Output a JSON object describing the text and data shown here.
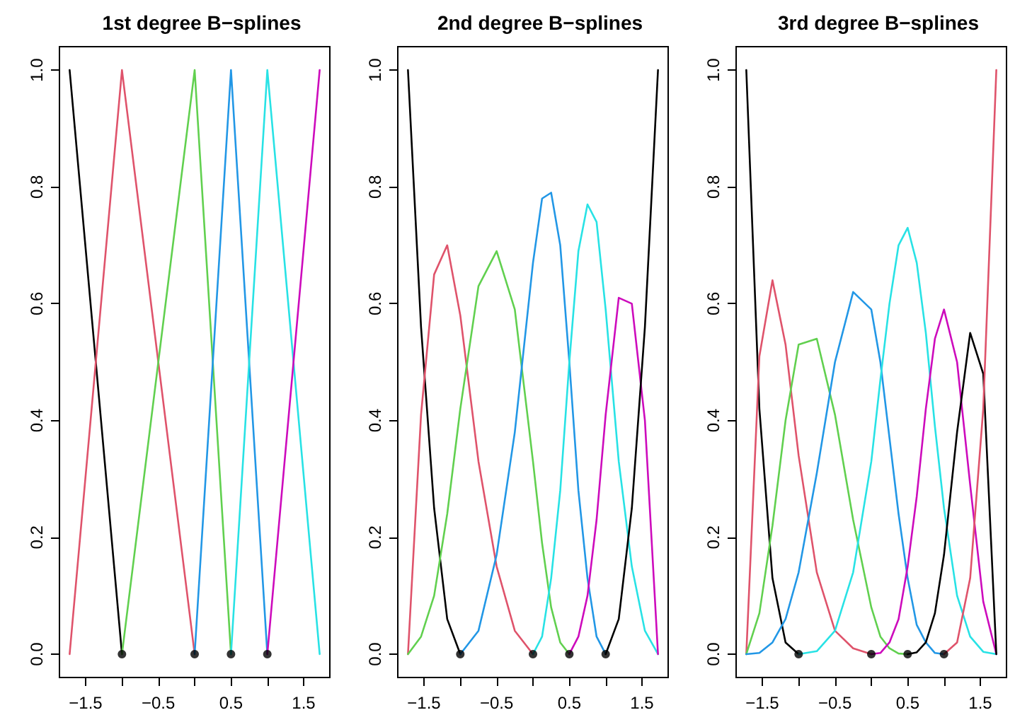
{
  "chart_data": [
    {
      "type": "line",
      "title": "1st degree B−splines",
      "marker": "none",
      "line_style": "solid",
      "x": [
        -1.72,
        -1,
        0,
        0.5,
        1,
        1.72
      ],
      "xlim": [
        -1.86,
        1.86
      ],
      "ylim": [
        -0.04,
        1.04
      ],
      "xticks": [
        {
          "value": -1.5,
          "label": "−1.5"
        },
        {
          "value": -1,
          "label": null
        },
        {
          "value": -0.5,
          "label": "−0.5"
        },
        {
          "value": 0,
          "label": null
        },
        {
          "value": 0.5,
          "label": "0.5"
        },
        {
          "value": 1,
          "label": null
        },
        {
          "value": 1.5,
          "label": "1.5"
        }
      ],
      "yticks": [
        {
          "value": 0,
          "label": "0.0"
        },
        {
          "value": 0.2,
          "label": "0.2"
        },
        {
          "value": 0.4,
          "label": "0.4"
        },
        {
          "value": 0.6,
          "label": "0.6"
        },
        {
          "value": 0.8,
          "label": "0.8"
        },
        {
          "value": 1,
          "label": "1.0"
        }
      ],
      "series": [
        {
          "color": "#000000",
          "values": [
            1,
            0,
            null,
            null,
            null,
            null
          ]
        },
        {
          "color": "#df536b",
          "values": [
            0,
            1,
            0,
            null,
            null,
            null
          ]
        },
        {
          "color": "#61d04f",
          "values": [
            null,
            0,
            1,
            0,
            null,
            null
          ]
        },
        {
          "color": "#2297e6",
          "values": [
            null,
            null,
            0,
            1,
            0,
            null
          ]
        },
        {
          "color": "#28e2e5",
          "values": [
            null,
            null,
            null,
            0,
            1,
            0
          ]
        },
        {
          "color": "#cd0bbc",
          "values": [
            null,
            null,
            null,
            null,
            0,
            1
          ]
        },
        {
          "type": "scatter",
          "marker": "circle",
          "color": "#000000",
          "x": [
            -1,
            0,
            0.5,
            1
          ],
          "values": [
            0,
            0,
            0,
            0
          ]
        }
      ]
    },
    {
      "type": "line",
      "title": "2nd degree B−splines",
      "marker": "none",
      "line_style": "solid",
      "x": [
        -1.72,
        -1.54,
        -1.36,
        -1.18,
        -1,
        -0.75,
        -0.5,
        -0.25,
        0,
        0.125,
        0.25,
        0.375,
        0.5,
        0.625,
        0.75,
        0.875,
        1,
        1.18,
        1.36,
        1.54,
        1.72
      ],
      "xlim": [
        -1.86,
        1.86
      ],
      "ylim": [
        -0.04,
        1.04
      ],
      "xticks": [
        {
          "value": -1.5,
          "label": "−1.5"
        },
        {
          "value": -1,
          "label": null
        },
        {
          "value": -0.5,
          "label": "−0.5"
        },
        {
          "value": 0,
          "label": null
        },
        {
          "value": 0.5,
          "label": "0.5"
        },
        {
          "value": 1,
          "label": null
        },
        {
          "value": 1.5,
          "label": "1.5"
        }
      ],
      "yticks": [
        {
          "value": 0,
          "label": "0.0"
        },
        {
          "value": 0.2,
          "label": "0.2"
        },
        {
          "value": 0.4,
          "label": "0.4"
        },
        {
          "value": 0.6,
          "label": "0.6"
        },
        {
          "value": 0.8,
          "label": "0.8"
        },
        {
          "value": 1,
          "label": "1.0"
        }
      ],
      "series": [
        {
          "color": "#000000",
          "values": [
            1,
            0.56,
            0.25,
            0.06,
            0,
            null,
            null,
            null,
            null,
            null,
            null,
            null,
            null,
            null,
            null,
            null,
            null,
            null,
            null,
            null,
            null
          ]
        },
        {
          "color": "#df536b",
          "values": [
            0,
            0.41,
            0.65,
            0.7,
            0.58,
            0.33,
            0.15,
            0.04,
            0,
            null,
            null,
            null,
            null,
            null,
            null,
            null,
            null,
            null,
            null,
            null,
            null
          ]
        },
        {
          "color": "#61d04f",
          "values": [
            0,
            0.03,
            0.1,
            0.24,
            0.42,
            0.63,
            0.69,
            0.59,
            0.33,
            0.19,
            0.08,
            0.02,
            0,
            null,
            null,
            null,
            null,
            null,
            null,
            null,
            null
          ]
        },
        {
          "color": "#2297e6",
          "values": [
            null,
            null,
            null,
            null,
            0,
            0.04,
            0.17,
            0.38,
            0.67,
            0.78,
            0.79,
            0.7,
            0.5,
            0.28,
            0.13,
            0.03,
            0,
            null,
            null,
            null,
            null
          ]
        },
        {
          "color": "#28e2e5",
          "values": [
            null,
            null,
            null,
            null,
            null,
            null,
            null,
            null,
            0,
            0.03,
            0.13,
            0.28,
            0.5,
            0.69,
            0.77,
            0.74,
            0.59,
            0.33,
            0.15,
            0.04,
            0
          ]
        },
        {
          "color": "#cd0bbc",
          "values": [
            null,
            null,
            null,
            null,
            null,
            null,
            null,
            null,
            null,
            null,
            null,
            null,
            0,
            0.03,
            0.1,
            0.23,
            0.41,
            0.61,
            0.6,
            0.4,
            0
          ]
        },
        {
          "color": "#000000",
          "values": [
            null,
            null,
            null,
            null,
            null,
            null,
            null,
            null,
            null,
            null,
            null,
            null,
            null,
            null,
            null,
            null,
            0,
            0.06,
            0.25,
            0.56,
            1
          ]
        },
        {
          "type": "scatter",
          "marker": "circle",
          "color": "#000000",
          "x": [
            -1,
            0,
            0.5,
            1
          ],
          "values": [
            0,
            0,
            0,
            0
          ]
        }
      ]
    },
    {
      "type": "line",
      "title": "3rd degree B−splines",
      "marker": "none",
      "line_style": "solid",
      "x": [
        -1.72,
        -1.54,
        -1.36,
        -1.18,
        -1,
        -0.75,
        -0.5,
        -0.25,
        0,
        0.125,
        0.25,
        0.375,
        0.5,
        0.625,
        0.75,
        0.875,
        1,
        1.18,
        1.36,
        1.54,
        1.72
      ],
      "xlim": [
        -1.86,
        1.86
      ],
      "ylim": [
        -0.04,
        1.04
      ],
      "xticks": [
        {
          "value": -1.5,
          "label": "−1.5"
        },
        {
          "value": -1,
          "label": null
        },
        {
          "value": -0.5,
          "label": "−0.5"
        },
        {
          "value": 0,
          "label": null
        },
        {
          "value": 0.5,
          "label": "0.5"
        },
        {
          "value": 1,
          "label": null
        },
        {
          "value": 1.5,
          "label": "1.5"
        }
      ],
      "yticks": [
        {
          "value": 0,
          "label": "0.0"
        },
        {
          "value": 0.2,
          "label": "0.2"
        },
        {
          "value": 0.4,
          "label": "0.4"
        },
        {
          "value": 0.6,
          "label": "0.6"
        },
        {
          "value": 0.8,
          "label": "0.8"
        },
        {
          "value": 1,
          "label": "1.0"
        }
      ],
      "series": [
        {
          "color": "#000000",
          "values": [
            1,
            0.42,
            0.13,
            0.02,
            0,
            null,
            null,
            null,
            null,
            null,
            null,
            null,
            null,
            null,
            null,
            null,
            null,
            null,
            null,
            null,
            null
          ]
        },
        {
          "color": "#df536b",
          "values": [
            0,
            0.51,
            0.64,
            0.53,
            0.34,
            0.14,
            0.04,
            0.01,
            0,
            null,
            null,
            null,
            null,
            null,
            null,
            null,
            null,
            null,
            null,
            null,
            null
          ]
        },
        {
          "color": "#61d04f",
          "values": [
            0,
            0.07,
            0.22,
            0.4,
            0.53,
            0.54,
            0.41,
            0.23,
            0.08,
            0.03,
            0.01,
            0.001,
            0,
            null,
            null,
            null,
            null,
            null,
            null,
            null,
            null
          ]
        },
        {
          "color": "#2297e6",
          "values": [
            0,
            0.002,
            0.02,
            0.06,
            0.14,
            0.31,
            0.5,
            0.62,
            0.59,
            0.5,
            0.37,
            0.24,
            0.13,
            0.05,
            0.02,
            0.002,
            0,
            null,
            null,
            null,
            null
          ]
        },
        {
          "color": "#28e2e5",
          "values": [
            null,
            null,
            null,
            null,
            0,
            0.005,
            0.04,
            0.14,
            0.33,
            0.47,
            0.6,
            0.7,
            0.73,
            0.67,
            0.55,
            0.39,
            0.25,
            0.1,
            0.03,
            0.004,
            0
          ]
        },
        {
          "color": "#cd0bbc",
          "values": [
            null,
            null,
            null,
            null,
            null,
            null,
            null,
            null,
            0,
            0.002,
            0.02,
            0.06,
            0.15,
            0.27,
            0.42,
            0.54,
            0.59,
            0.5,
            0.29,
            0.09,
            0
          ]
        },
        {
          "color": "#000000",
          "values": [
            null,
            null,
            null,
            null,
            null,
            null,
            null,
            null,
            null,
            null,
            null,
            null,
            0,
            0.003,
            0.02,
            0.07,
            0.17,
            0.38,
            0.55,
            0.48,
            0
          ]
        },
        {
          "color": "#df536b",
          "values": [
            null,
            null,
            null,
            null,
            null,
            null,
            null,
            null,
            null,
            null,
            null,
            null,
            null,
            null,
            null,
            null,
            0,
            0.02,
            0.13,
            0.42,
            1
          ]
        },
        {
          "type": "scatter",
          "marker": "circle",
          "color": "#000000",
          "x": [
            -1,
            0,
            0.5,
            1
          ],
          "values": [
            0,
            0,
            0,
            0
          ]
        }
      ]
    }
  ]
}
